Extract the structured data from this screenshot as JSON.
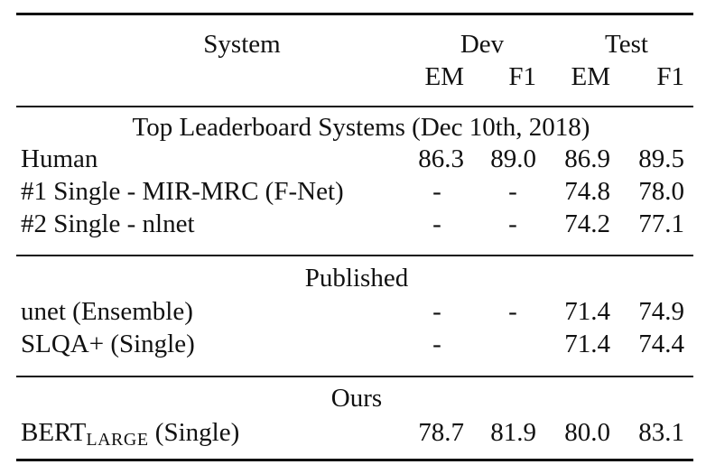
{
  "header": {
    "system": "System",
    "dev": "Dev",
    "test": "Test",
    "em": "EM",
    "f1": "F1"
  },
  "sections": [
    {
      "title": "Top Leaderboard Systems (Dec 10th, 2018)",
      "rows": [
        {
          "system": "Human",
          "dev_em": "86.3",
          "dev_f1": "89.0",
          "test_em": "86.9",
          "test_f1": "89.5"
        },
        {
          "system": "#1 Single - MIR-MRC (F-Net)",
          "dev_em": "-",
          "dev_f1": "-",
          "test_em": "74.8",
          "test_f1": "78.0"
        },
        {
          "system": "#2 Single - nlnet",
          "dev_em": "-",
          "dev_f1": "-",
          "test_em": "74.2",
          "test_f1": "77.1"
        }
      ]
    },
    {
      "title": "Published",
      "rows": [
        {
          "system": "unet (Ensemble)",
          "dev_em": "-",
          "dev_f1": "-",
          "test_em": "71.4",
          "test_f1": "74.9"
        },
        {
          "system": "SLQA+ (Single)",
          "dev_em": "-",
          "dev_f1": "",
          "test_em": "71.4",
          "test_f1": "74.4"
        }
      ]
    },
    {
      "title": "Ours",
      "rows": [
        {
          "system_base": "BERT",
          "system_sub": "LARGE",
          "system_suffix": " (Single)",
          "dev_em": "78.7",
          "dev_f1": "81.9",
          "test_em": "80.0",
          "test_f1": "83.1"
        }
      ]
    }
  ]
}
